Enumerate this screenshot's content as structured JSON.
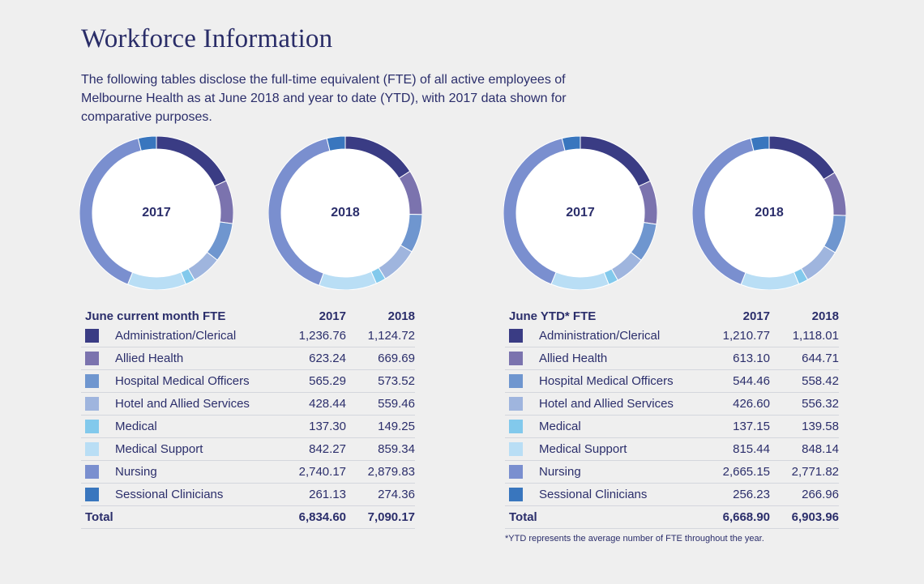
{
  "title": "Workforce Information",
  "intro": "The following tables disclose the full-time equivalent (FTE) of all active employees of Melbourne Health as at June 2018 and year to date (YTD), with 2017 data shown for comparative purposes.",
  "categories": [
    "Administration/Clerical",
    "Allied Health",
    "Hospital Medical Officers",
    "Hotel and Allied Services",
    "Medical",
    "Medical Support",
    "Nursing",
    "Sessional Clinicians"
  ],
  "colors": [
    "#3a3c84",
    "#7b73ae",
    "#6f96cf",
    "#9fb5de",
    "#82c9ec",
    "#b9def5",
    "#7a8fcf",
    "#3976be"
  ],
  "current_table": {
    "heading": "June current month FTE",
    "year1": "2017",
    "year2": "2018",
    "rows": [
      {
        "label": "Administration/Clerical",
        "v2017": "1,236.76",
        "v2018": "1,124.72"
      },
      {
        "label": "Allied Health",
        "v2017": "623.24",
        "v2018": "669.69"
      },
      {
        "label": "Hospital Medical Officers",
        "v2017": "565.29",
        "v2018": "573.52"
      },
      {
        "label": "Hotel and Allied Services",
        "v2017": "428.44",
        "v2018": "559.46"
      },
      {
        "label": "Medical",
        "v2017": "137.30",
        "v2018": "149.25"
      },
      {
        "label": "Medical Support",
        "v2017": "842.27",
        "v2018": "859.34"
      },
      {
        "label": "Nursing",
        "v2017": "2,740.17",
        "v2018": "2,879.83"
      },
      {
        "label": "Sessional Clinicians",
        "v2017": "261.13",
        "v2018": "274.36"
      }
    ],
    "total_label": "Total",
    "total2017": "6,834.60",
    "total2018": "7,090.17"
  },
  "ytd_table": {
    "heading": "June YTD* FTE",
    "year1": "2017",
    "year2": "2018",
    "rows": [
      {
        "label": "Administration/Clerical",
        "v2017": "1,210.77",
        "v2018": "1,118.01"
      },
      {
        "label": "Allied Health",
        "v2017": "613.10",
        "v2018": "644.71"
      },
      {
        "label": "Hospital Medical Officers",
        "v2017": "544.46",
        "v2018": "558.42"
      },
      {
        "label": "Hotel and Allied Services",
        "v2017": "426.60",
        "v2018": "556.32"
      },
      {
        "label": "Medical",
        "v2017": "137.15",
        "v2018": "139.58"
      },
      {
        "label": "Medical Support",
        "v2017": "815.44",
        "v2018": "848.14"
      },
      {
        "label": "Nursing",
        "v2017": "2,665.15",
        "v2018": "2,771.82"
      },
      {
        "label": "Sessional Clinicians",
        "v2017": "256.23",
        "v2018": "266.96"
      }
    ],
    "total_label": "Total",
    "total2017": "6,668.90",
    "total2018": "6,903.96"
  },
  "footnote": "*YTD represents the average number of FTE throughout the year.",
  "chart_data": [
    {
      "type": "pie",
      "label": "2017",
      "categories": [
        "Administration/Clerical",
        "Allied Health",
        "Hospital Medical Officers",
        "Hotel and Allied Services",
        "Medical",
        "Medical Support",
        "Nursing",
        "Sessional Clinicians"
      ],
      "values": [
        1236.76,
        623.24,
        565.29,
        428.44,
        137.3,
        842.27,
        2740.17,
        261.13
      ]
    },
    {
      "type": "pie",
      "label": "2018",
      "categories": [
        "Administration/Clerical",
        "Allied Health",
        "Hospital Medical Officers",
        "Hotel and Allied Services",
        "Medical",
        "Medical Support",
        "Nursing",
        "Sessional Clinicians"
      ],
      "values": [
        1124.72,
        669.69,
        573.52,
        559.46,
        149.25,
        859.34,
        2879.83,
        274.36
      ]
    },
    {
      "type": "pie",
      "label": "2017",
      "categories": [
        "Administration/Clerical",
        "Allied Health",
        "Hospital Medical Officers",
        "Hotel and Allied Services",
        "Medical",
        "Medical Support",
        "Nursing",
        "Sessional Clinicians"
      ],
      "values": [
        1210.77,
        613.1,
        544.46,
        426.6,
        137.15,
        815.44,
        2665.15,
        256.23
      ]
    },
    {
      "type": "pie",
      "label": "2018",
      "categories": [
        "Administration/Clerical",
        "Allied Health",
        "Hospital Medical Officers",
        "Hotel and Allied Services",
        "Medical",
        "Medical Support",
        "Nursing",
        "Sessional Clinicians"
      ],
      "values": [
        1118.01,
        644.71,
        558.42,
        556.32,
        139.58,
        848.14,
        2771.82,
        266.96
      ]
    }
  ]
}
